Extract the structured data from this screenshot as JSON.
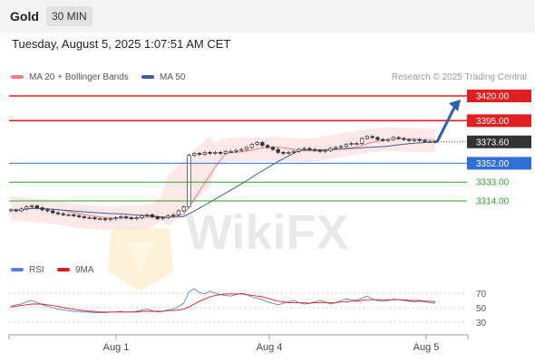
{
  "header": {
    "symbol": "Gold",
    "timeframe": "30 MIN"
  },
  "datetime": "Tuesday, August 5, 2025 1:07:51 AM CET",
  "legend": {
    "ma20": {
      "label": "MA 20 + Bollinger Bands",
      "color": "#f08080"
    },
    "ma50": {
      "label": "MA 50",
      "color": "#3b5e9b"
    }
  },
  "credit": "Research © 2025 Trading Central",
  "watermark": "WikiFX",
  "levels": [
    {
      "value": "3420.00",
      "kind": "resistance",
      "color": "#e02020"
    },
    {
      "value": "3395.00",
      "kind": "resistance",
      "color": "#e02020"
    },
    {
      "value": "3373.60",
      "kind": "last",
      "color": "#333333"
    },
    {
      "value": "3352.00",
      "kind": "support",
      "color": "#2f6fd6"
    },
    {
      "value": "3333.00",
      "kind": "minor",
      "color": "#2e9e2e"
    },
    {
      "value": "3314.00",
      "kind": "minor",
      "color": "#2e9e2e"
    }
  ],
  "rsi": {
    "legend": [
      {
        "label": "RSI",
        "color": "#5b7fd6"
      },
      {
        "label": "9MA",
        "color": "#d62020"
      }
    ],
    "ticks": [
      "70",
      "50",
      "30"
    ]
  },
  "xaxis": {
    "labels": [
      "Aug 1",
      "Aug 4",
      "Aug 5"
    ]
  },
  "chart_data": {
    "type": "candlestick",
    "title": "Gold",
    "timeframe": "30 MIN",
    "y_axis_side": "right",
    "price_levels": [
      3420.0,
      3395.0,
      3373.6,
      3352.0,
      3333.0,
      3314.0
    ],
    "last_price": 3373.6,
    "x_tick_labels": [
      "Aug 1",
      "Aug 4",
      "Aug 5"
    ],
    "forecast_arrow": {
      "from": 3373.6,
      "to": 3420.0
    },
    "close": [
      3305,
      3304,
      3306,
      3308,
      3309,
      3307,
      3305,
      3304,
      3302,
      3301,
      3300,
      3300,
      3299,
      3298,
      3297,
      3297,
      3296,
      3296,
      3295,
      3296,
      3297,
      3298,
      3297,
      3296,
      3297,
      3299,
      3300,
      3298,
      3296,
      3297,
      3299,
      3300,
      3304,
      3308,
      3360,
      3362,
      3361,
      3363,
      3362,
      3363,
      3362,
      3364,
      3364,
      3365,
      3366,
      3368,
      3371,
      3373,
      3370,
      3368,
      3366,
      3363,
      3362,
      3363,
      3364,
      3366,
      3367,
      3366,
      3365,
      3364,
      3365,
      3367,
      3368,
      3369,
      3371,
      3372,
      3372,
      3377,
      3379,
      3378,
      3376,
      3375,
      3376,
      3378,
      3377,
      3376,
      3375,
      3376,
      3375,
      3374,
      3374,
      3373.6
    ],
    "rsi": {
      "ticks": [
        70,
        50,
        30
      ],
      "rsi": [
        52,
        54,
        55,
        58,
        60,
        57,
        54,
        52,
        50,
        48,
        47,
        46,
        45,
        45,
        44,
        44,
        43,
        43,
        43,
        44,
        44,
        45,
        44,
        44,
        45,
        47,
        48,
        46,
        44,
        45,
        47,
        48,
        52,
        56,
        72,
        76,
        71,
        69,
        73,
        70,
        68,
        67,
        66,
        68,
        70,
        68,
        65,
        63,
        61,
        58,
        56,
        54,
        56,
        58,
        60,
        57,
        55,
        56,
        58,
        60,
        58,
        55,
        57,
        60,
        62,
        61,
        60,
        63,
        66,
        62,
        60,
        59,
        60,
        62,
        61,
        60,
        59,
        58,
        59,
        58,
        57,
        56
      ],
      "ma9": [
        51,
        52,
        53,
        54,
        55,
        55,
        55,
        54,
        53,
        52,
        50,
        49,
        48,
        47,
        46,
        45,
        45,
        44,
        44,
        44,
        44,
        44,
        44,
        44,
        44,
        45,
        45,
        45,
        45,
        45,
        46,
        46,
        47,
        48,
        51,
        55,
        59,
        62,
        65,
        67,
        68,
        69,
        69,
        69,
        69,
        68,
        67,
        66,
        65,
        63,
        61,
        59,
        58,
        57,
        57,
        57,
        57,
        56,
        57,
        57,
        57,
        57,
        57,
        58,
        58,
        59,
        59,
        60,
        61,
        61,
        61,
        61,
        61,
        61,
        61,
        61,
        60,
        60,
        60,
        59,
        59,
        58
      ]
    }
  }
}
